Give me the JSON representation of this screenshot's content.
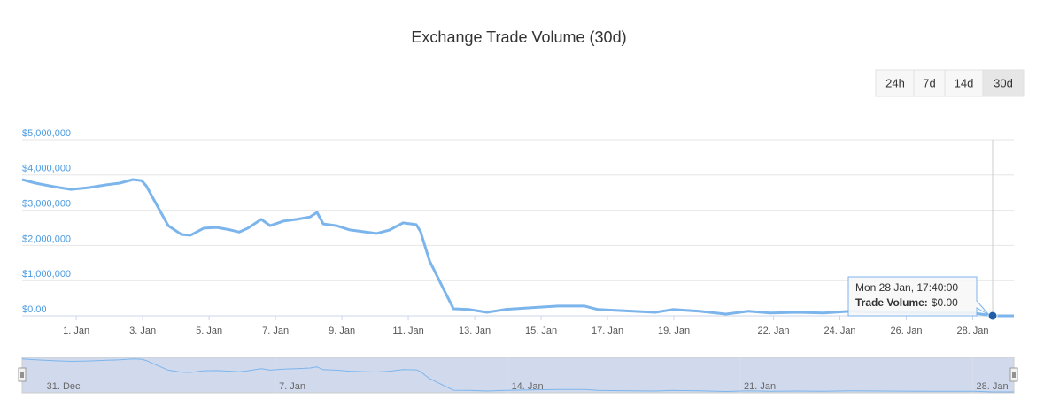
{
  "chart_data": {
    "type": "line",
    "title": "Exchange Trade Volume (30d)",
    "range_buttons": [
      "24h",
      "7d",
      "14d",
      "30d"
    ],
    "selected_button": 3,
    "series": [
      {
        "name": "Trade Volume",
        "color": "#7cb5ec",
        "x": [
          -0.63,
          -0.23,
          0.31,
          0.84,
          1.37,
          1.91,
          2.31,
          2.71,
          2.97,
          3.11,
          3.37,
          3.77,
          4.17,
          4.44,
          4.84,
          5.24,
          5.64,
          5.91,
          6.17,
          6.57,
          6.84,
          7.24,
          7.64,
          8.04,
          8.25,
          8.44,
          8.84,
          9.24,
          9.64,
          10.04,
          10.44,
          10.84,
          11.24,
          11.37,
          11.64,
          12.04,
          12.36,
          12.84,
          13.37,
          13.91,
          14.71,
          15.51,
          16.31,
          16.71,
          17.37,
          18.44,
          18.97,
          19.77,
          20.57,
          21.24,
          21.91,
          22.71,
          23.51,
          24.31,
          25.37,
          26.71,
          28.04,
          28.6,
          29.24
        ],
        "values": [
          3870000,
          3770000,
          3670000,
          3590000,
          3640000,
          3720000,
          3770000,
          3870000,
          3840000,
          3690000,
          3240000,
          2560000,
          2310000,
          2290000,
          2490000,
          2510000,
          2440000,
          2380000,
          2490000,
          2740000,
          2560000,
          2690000,
          2740000,
          2810000,
          2940000,
          2610000,
          2560000,
          2440000,
          2390000,
          2340000,
          2440000,
          2640000,
          2590000,
          2390000,
          1560000,
          800000,
          200000,
          180000,
          100000,
          180000,
          230000,
          280000,
          280000,
          180000,
          150000,
          100000,
          180000,
          130000,
          50000,
          130000,
          80000,
          100000,
          80000,
          130000,
          100000,
          80000,
          80000,
          0,
          0
        ]
      }
    ],
    "xlim": [
      -0.63,
      29.24
    ],
    "xticks": [
      {
        "value": 1,
        "label": "1. Jan"
      },
      {
        "value": 3,
        "label": "3. Jan"
      },
      {
        "value": 5,
        "label": "5. Jan"
      },
      {
        "value": 7,
        "label": "7. Jan"
      },
      {
        "value": 9,
        "label": "9. Jan"
      },
      {
        "value": 11,
        "label": "11. Jan"
      },
      {
        "value": 13,
        "label": "13. Jan"
      },
      {
        "value": 15,
        "label": "15. Jan"
      },
      {
        "value": 17,
        "label": "17. Jan"
      },
      {
        "value": 19,
        "label": "19. Jan"
      },
      {
        "value": 22,
        "label": "22. Jan"
      },
      {
        "value": 24,
        "label": "24. Jan"
      },
      {
        "value": 26,
        "label": "26. Jan"
      },
      {
        "value": 28,
        "label": "28. Jan"
      }
    ],
    "ylim": [
      0,
      5000000
    ],
    "yticks": [
      {
        "value": 0,
        "label": "$0.00"
      },
      {
        "value": 1000000,
        "label": "$1,000,000"
      },
      {
        "value": 2000000,
        "label": "$2,000,000"
      },
      {
        "value": 3000000,
        "label": "$3,000,000"
      },
      {
        "value": 4000000,
        "label": "$4,000,000"
      },
      {
        "value": 5000000,
        "label": "$5,000,000"
      }
    ],
    "grid": true,
    "navigator_xticks": [
      {
        "value": 0,
        "label": "31. Dec"
      },
      {
        "value": 7,
        "label": "7. Jan"
      },
      {
        "value": 14,
        "label": "14. Jan"
      },
      {
        "value": 21,
        "label": "21. Jan"
      },
      {
        "value": 28,
        "label": "28. Jan"
      }
    ],
    "tooltip": {
      "x": 28.6,
      "value": 0,
      "date_label": "Mon 28 Jan, 17:40:00",
      "series_label": "Trade Volume:",
      "value_label": "$0.00"
    }
  }
}
